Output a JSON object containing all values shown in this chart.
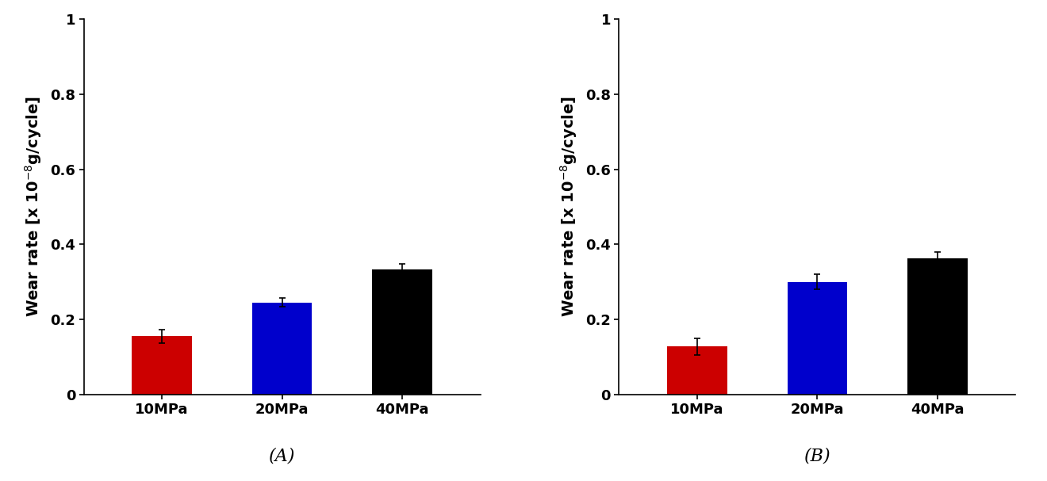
{
  "panel_A": {
    "categories": [
      "10MPa",
      "20MPa",
      "40MPa"
    ],
    "values": [
      0.155,
      0.245,
      0.333
    ],
    "errors": [
      0.018,
      0.012,
      0.015
    ],
    "colors": [
      "#cc0000",
      "#0000cc",
      "#000000"
    ]
  },
  "panel_B": {
    "categories": [
      "10MPa",
      "20MPa",
      "40MPa"
    ],
    "values": [
      0.128,
      0.3,
      0.362
    ],
    "errors": [
      0.022,
      0.02,
      0.018
    ],
    "colors": [
      "#cc0000",
      "#0000cc",
      "#000000"
    ]
  },
  "ylabel": "Wear rate [x 10",
  "ylabel_exp": "-8",
  "ylabel_suffix": "g/cycle]",
  "ylim": [
    0,
    1.0
  ],
  "yticks": [
    0,
    0.2,
    0.4,
    0.6,
    0.8,
    1.0
  ],
  "ytick_labels": [
    "0",
    "0.2",
    "0.4",
    "0.6",
    "0.8",
    "1"
  ],
  "label_A": "(A)",
  "label_B": "(B)",
  "bar_width": 0.5,
  "tick_fontsize": 13,
  "label_fontsize": 14,
  "caption_fontsize": 16
}
